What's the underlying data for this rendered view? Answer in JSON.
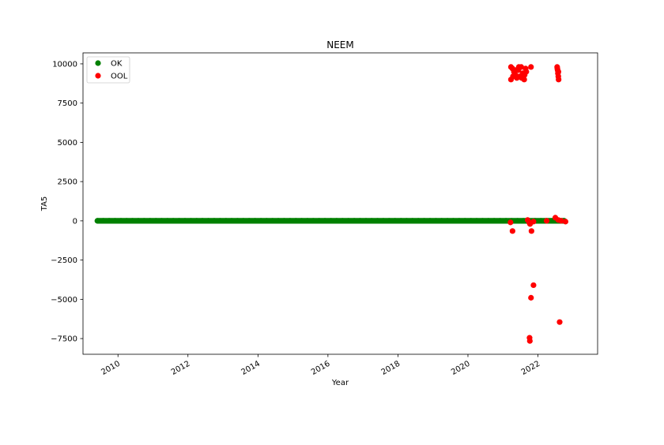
{
  "chart_data": {
    "type": "scatter",
    "title": "NEEM",
    "xlabel": "Year",
    "ylabel": "TA5",
    "x_axis_kind": "date",
    "xlim": [
      "2009-01-01",
      "2023-09-15"
    ],
    "ylim": [
      -8500,
      10700
    ],
    "xticks": [
      "2010",
      "2012",
      "2014",
      "2016",
      "2018",
      "2020",
      "2022"
    ],
    "yticks": [
      10000,
      7500,
      5000,
      2500,
      0,
      -2500,
      -5000,
      -7500
    ],
    "grid": false,
    "legend_position": "top-left",
    "series": [
      {
        "name": "OK",
        "color": "#008000",
        "points": [
          [
            "2009-06-01",
            0
          ],
          [
            "2009-08-01",
            0
          ],
          [
            "2009-10-01",
            0
          ],
          [
            "2009-12-01",
            0
          ],
          [
            "2010-02-01",
            0
          ],
          [
            "2010-04-01",
            0
          ],
          [
            "2010-06-01",
            0
          ],
          [
            "2010-08-01",
            0
          ],
          [
            "2010-10-01",
            0
          ],
          [
            "2010-12-01",
            0
          ],
          [
            "2011-02-01",
            0
          ],
          [
            "2011-04-01",
            0
          ],
          [
            "2011-06-01",
            0
          ],
          [
            "2011-08-01",
            0
          ],
          [
            "2011-10-01",
            0
          ],
          [
            "2011-12-01",
            0
          ],
          [
            "2012-02-01",
            0
          ],
          [
            "2012-04-01",
            0
          ],
          [
            "2012-06-01",
            0
          ],
          [
            "2012-08-01",
            0
          ],
          [
            "2012-10-01",
            0
          ],
          [
            "2012-12-01",
            0
          ],
          [
            "2013-02-01",
            0
          ],
          [
            "2013-04-01",
            0
          ],
          [
            "2013-06-01",
            0
          ],
          [
            "2013-08-01",
            0
          ],
          [
            "2013-10-01",
            0
          ],
          [
            "2013-12-01",
            0
          ],
          [
            "2014-02-01",
            0
          ],
          [
            "2014-04-01",
            0
          ],
          [
            "2014-06-01",
            0
          ],
          [
            "2014-08-01",
            0
          ],
          [
            "2014-10-01",
            0
          ],
          [
            "2014-12-01",
            0
          ],
          [
            "2015-02-01",
            0
          ],
          [
            "2015-04-01",
            0
          ],
          [
            "2015-06-01",
            0
          ],
          [
            "2015-08-01",
            0
          ],
          [
            "2015-10-01",
            0
          ],
          [
            "2015-12-01",
            0
          ],
          [
            "2016-02-01",
            0
          ],
          [
            "2016-04-01",
            0
          ],
          [
            "2016-06-01",
            0
          ],
          [
            "2016-08-01",
            0
          ],
          [
            "2016-10-01",
            0
          ],
          [
            "2016-12-01",
            0
          ],
          [
            "2017-02-01",
            0
          ],
          [
            "2017-04-01",
            0
          ],
          [
            "2017-06-01",
            0
          ],
          [
            "2017-08-01",
            0
          ],
          [
            "2017-10-01",
            0
          ],
          [
            "2017-12-01",
            0
          ],
          [
            "2018-02-01",
            0
          ],
          [
            "2018-04-01",
            0
          ],
          [
            "2018-06-01",
            0
          ],
          [
            "2018-08-01",
            0
          ],
          [
            "2018-10-01",
            0
          ],
          [
            "2018-12-01",
            0
          ],
          [
            "2019-02-01",
            0
          ],
          [
            "2019-04-01",
            0
          ],
          [
            "2019-06-01",
            0
          ],
          [
            "2019-08-01",
            0
          ],
          [
            "2019-10-01",
            0
          ],
          [
            "2019-12-01",
            0
          ],
          [
            "2020-02-01",
            0
          ],
          [
            "2020-04-01",
            0
          ],
          [
            "2020-06-01",
            0
          ],
          [
            "2020-08-01",
            0
          ],
          [
            "2020-10-01",
            0
          ],
          [
            "2020-12-01",
            0
          ],
          [
            "2021-02-01",
            0
          ],
          [
            "2021-04-01",
            0
          ],
          [
            "2021-06-01",
            0
          ],
          [
            "2021-08-01",
            0
          ],
          [
            "2021-10-01",
            0
          ],
          [
            "2021-12-01",
            0
          ],
          [
            "2022-02-01",
            0
          ],
          [
            "2022-04-01",
            0
          ],
          [
            "2022-06-01",
            0
          ],
          [
            "2022-08-01",
            0
          ],
          [
            "2022-10-01",
            0
          ]
        ]
      },
      {
        "name": "OOL",
        "color": "#ff0000",
        "points": [
          [
            "2021-03-25",
            9800
          ],
          [
            "2021-04-10",
            9700
          ],
          [
            "2021-04-25",
            9500
          ],
          [
            "2021-05-10",
            9300
          ],
          [
            "2021-05-25",
            9100
          ],
          [
            "2021-06-10",
            9600
          ],
          [
            "2021-06-25",
            9200
          ],
          [
            "2021-07-10",
            9800
          ],
          [
            "2021-07-25",
            9400
          ],
          [
            "2021-08-10",
            9000
          ],
          [
            "2021-08-25",
            9700
          ],
          [
            "2021-09-01",
            9500
          ],
          [
            "2021-03-25",
            9000
          ],
          [
            "2021-04-15",
            9200
          ],
          [
            "2021-05-15",
            9600
          ],
          [
            "2021-06-15",
            9800
          ],
          [
            "2021-07-15",
            9100
          ],
          [
            "2021-08-15",
            9300
          ],
          [
            "2021-10-20",
            9800
          ],
          [
            "2022-07-20",
            9800
          ],
          [
            "2022-07-25",
            9600
          ],
          [
            "2022-07-28",
            9400
          ],
          [
            "2022-08-01",
            9200
          ],
          [
            "2022-08-04",
            9000
          ],
          [
            "2022-07-22",
            9700
          ],
          [
            "2022-08-02",
            9500
          ],
          [
            "2021-03-20",
            -100
          ],
          [
            "2021-04-10",
            -650
          ],
          [
            "2021-09-15",
            50
          ],
          [
            "2021-10-01",
            -100
          ],
          [
            "2021-10-10",
            -200
          ],
          [
            "2021-10-25",
            -650
          ],
          [
            "2021-11-15",
            -50
          ],
          [
            "2022-04-01",
            0
          ],
          [
            "2022-07-01",
            200
          ],
          [
            "2022-08-01",
            50
          ],
          [
            "2022-09-01",
            0
          ],
          [
            "2022-10-15",
            -50
          ],
          [
            "2021-10-05",
            -7450
          ],
          [
            "2021-10-08",
            -7650
          ],
          [
            "2021-10-20",
            -4900
          ],
          [
            "2021-11-15",
            -4100
          ],
          [
            "2022-08-15",
            -6450
          ]
        ]
      }
    ]
  }
}
